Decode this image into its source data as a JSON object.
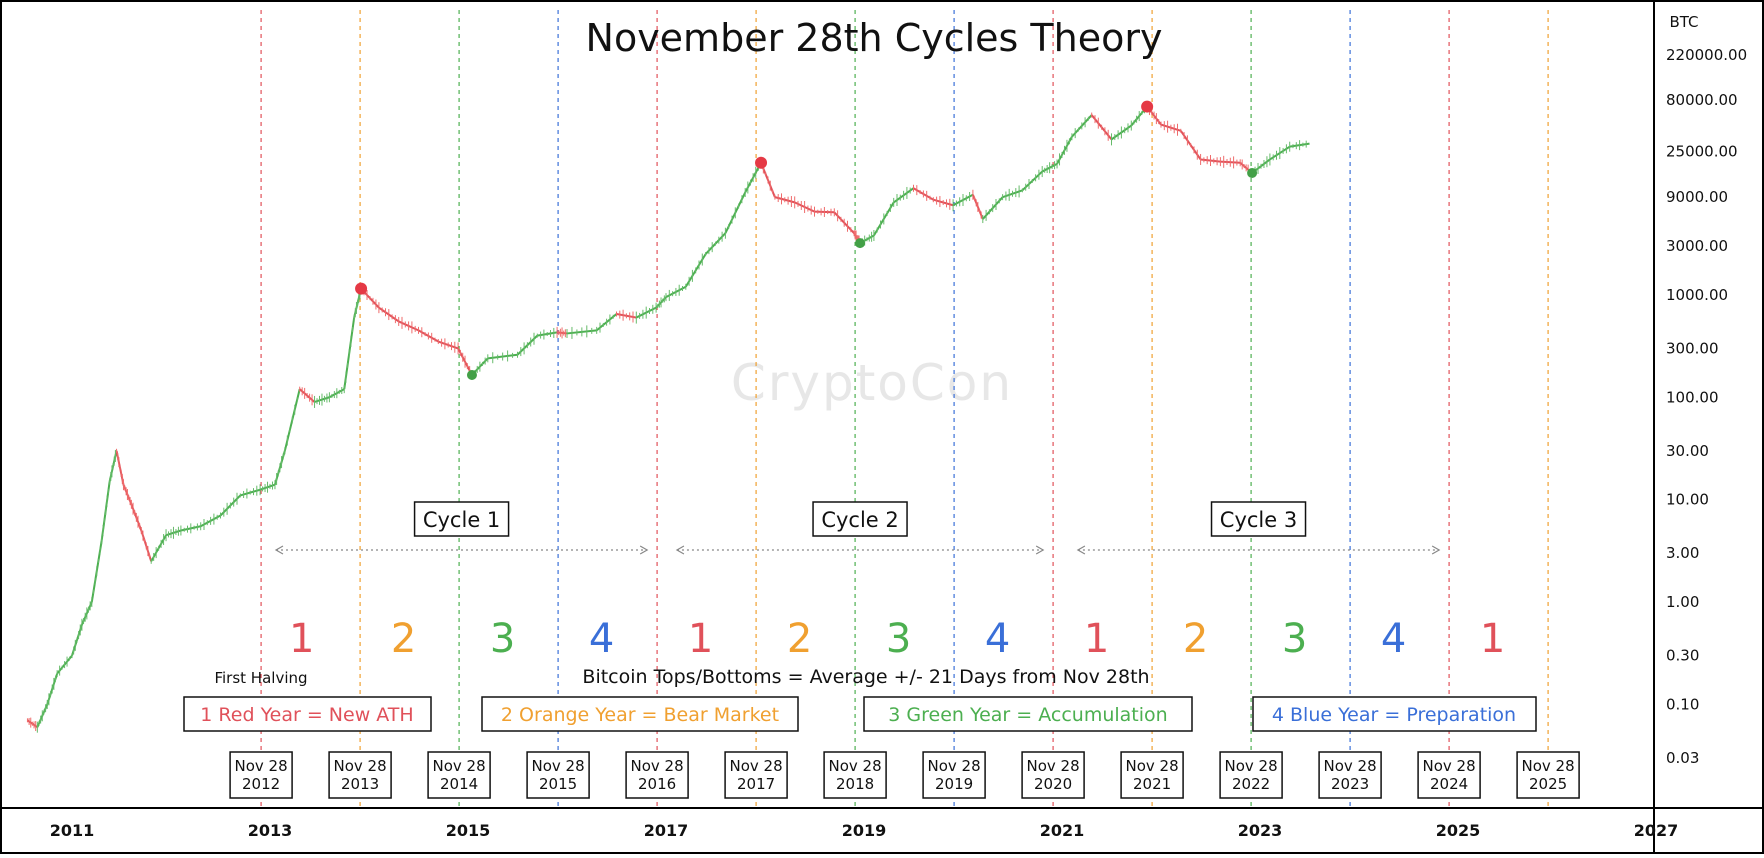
{
  "chart_data": {
    "type": "line",
    "y_scale": "log",
    "title": "November 28th Cycles Theory",
    "ylabel": "BTC",
    "watermark": "CryptoCon",
    "x_ticks": [
      "2011",
      "2013",
      "2015",
      "2017",
      "2019",
      "2021",
      "2023",
      "2025",
      "2027"
    ],
    "y_ticks": [
      "220000.00",
      "80000.00",
      "25000.00",
      "9000.00",
      "3000.00",
      "1000.00",
      "300.00",
      "100.00",
      "30.00",
      "10.00",
      "3.00",
      "1.00",
      "0.30",
      "0.10",
      "0.03"
    ],
    "y_tick_values": [
      220000,
      80000,
      25000,
      9000,
      3000,
      1000,
      300,
      100,
      30,
      10,
      3,
      1,
      0.3,
      0.1,
      0.03
    ],
    "xlim": [
      2010.6,
      2027.2
    ],
    "ylim": [
      0.0087,
      530000
    ],
    "cycle_lines": [
      {
        "x": 2012.91,
        "color": "#e0515a"
      },
      {
        "x": 2013.91,
        "color": "#f0a030"
      },
      {
        "x": 2014.91,
        "color": "#4caf50"
      },
      {
        "x": 2015.91,
        "color": "#3a6fd8"
      },
      {
        "x": 2016.91,
        "color": "#e0515a"
      },
      {
        "x": 2017.91,
        "color": "#f0a030"
      },
      {
        "x": 2018.91,
        "color": "#4caf50"
      },
      {
        "x": 2019.91,
        "color": "#3a6fd8"
      },
      {
        "x": 2020.91,
        "color": "#e0515a"
      },
      {
        "x": 2021.91,
        "color": "#f0a030"
      },
      {
        "x": 2022.91,
        "color": "#4caf50"
      },
      {
        "x": 2023.91,
        "color": "#3a6fd8"
      },
      {
        "x": 2024.91,
        "color": "#e0515a"
      },
      {
        "x": 2025.91,
        "color": "#f0a030"
      }
    ],
    "year_numbers": [
      {
        "x": 2013.32,
        "label": "1",
        "color": "#e0515a"
      },
      {
        "x": 2014.35,
        "label": "2",
        "color": "#f0a030"
      },
      {
        "x": 2015.35,
        "label": "3",
        "color": "#4caf50"
      },
      {
        "x": 2016.35,
        "label": "4",
        "color": "#3a6fd8"
      },
      {
        "x": 2017.35,
        "label": "1",
        "color": "#e0515a"
      },
      {
        "x": 2018.35,
        "label": "2",
        "color": "#f0a030"
      },
      {
        "x": 2019.35,
        "label": "3",
        "color": "#4caf50"
      },
      {
        "x": 2020.35,
        "label": "4",
        "color": "#3a6fd8"
      },
      {
        "x": 2021.35,
        "label": "1",
        "color": "#e0515a"
      },
      {
        "x": 2022.35,
        "label": "2",
        "color": "#f0a030"
      },
      {
        "x": 2023.35,
        "label": "3",
        "color": "#4caf50"
      },
      {
        "x": 2024.35,
        "label": "4",
        "color": "#3a6fd8"
      },
      {
        "x": 2025.35,
        "label": "1",
        "color": "#e0515a"
      }
    ],
    "date_boxes": [
      {
        "x": 2012.91,
        "line1": "Nov 28",
        "line2": "2012"
      },
      {
        "x": 2013.91,
        "line1": "Nov 28",
        "line2": "2013"
      },
      {
        "x": 2014.91,
        "line1": "Nov 28",
        "line2": "2014"
      },
      {
        "x": 2015.91,
        "line1": "Nov 28",
        "line2": "2015"
      },
      {
        "x": 2016.91,
        "line1": "Nov 28",
        "line2": "2016"
      },
      {
        "x": 2017.91,
        "line1": "Nov 28",
        "line2": "2017"
      },
      {
        "x": 2018.91,
        "line1": "Nov 28",
        "line2": "2018"
      },
      {
        "x": 2019.91,
        "line1": "Nov 28",
        "line2": "2019"
      },
      {
        "x": 2020.91,
        "line1": "Nov 28",
        "line2": "2020"
      },
      {
        "x": 2021.91,
        "line1": "Nov 28",
        "line2": "2021"
      },
      {
        "x": 2022.91,
        "line1": "Nov 28",
        "line2": "2022"
      },
      {
        "x": 2023.91,
        "line1": "Nov 28",
        "line2": "2023"
      },
      {
        "x": 2024.91,
        "line1": "Nov 28",
        "line2": "2024"
      },
      {
        "x": 2025.91,
        "line1": "Nov 28",
        "line2": "2025"
      }
    ],
    "cycles": [
      {
        "label": "Cycle 1",
        "x_start": 2013.0,
        "x_end": 2016.85
      },
      {
        "label": "Cycle 2",
        "x_start": 2017.05,
        "x_end": 2020.85
      },
      {
        "label": "Cycle 3",
        "x_start": 2021.1,
        "x_end": 2024.85
      }
    ],
    "legend": [
      {
        "label": "1 Red Year = New ATH",
        "color": "#e0515a"
      },
      {
        "label": "2 Orange Year = Bear Market",
        "color": "#f0a030"
      },
      {
        "label": "3 Green Year = Accumulation",
        "color": "#4caf50"
      },
      {
        "label": "4 Blue Year = Preparation",
        "color": "#3a6fd8"
      }
    ],
    "subtitle": "Bitcoin Tops/Bottoms = Average +/- 21 Days from Nov 28th",
    "halving_label": "First Halving",
    "tops": [
      {
        "x": 2013.92,
        "y": 1150
      },
      {
        "x": 2017.96,
        "y": 19500
      },
      {
        "x": 2021.86,
        "y": 69000
      }
    ],
    "bottoms": [
      {
        "x": 2015.04,
        "y": 165
      },
      {
        "x": 2018.96,
        "y": 3200
      },
      {
        "x": 2022.92,
        "y": 15500
      }
    ],
    "price_series": {
      "x": [
        2010.55,
        2010.65,
        2010.75,
        2010.85,
        2011.0,
        2011.1,
        2011.2,
        2011.3,
        2011.38,
        2011.45,
        2011.52,
        2011.6,
        2011.7,
        2011.8,
        2011.95,
        2012.1,
        2012.3,
        2012.5,
        2012.7,
        2012.9,
        2013.05,
        2013.15,
        2013.3,
        2013.45,
        2013.6,
        2013.75,
        2013.85,
        2013.92,
        2014.1,
        2014.3,
        2014.5,
        2014.7,
        2014.9,
        2015.04,
        2015.2,
        2015.5,
        2015.7,
        2015.9,
        2016.0,
        2016.3,
        2016.5,
        2016.7,
        2016.9,
        2017.0,
        2017.2,
        2017.4,
        2017.6,
        2017.8,
        2017.96,
        2018.1,
        2018.3,
        2018.5,
        2018.7,
        2018.9,
        2018.96,
        2019.1,
        2019.3,
        2019.5,
        2019.7,
        2019.9,
        2020.1,
        2020.2,
        2020.4,
        2020.6,
        2020.8,
        2020.95,
        2021.1,
        2021.3,
        2021.5,
        2021.7,
        2021.86,
        2022.0,
        2022.2,
        2022.4,
        2022.6,
        2022.8,
        2022.92,
        2023.1,
        2023.3,
        2023.5
      ],
      "y": [
        0.07,
        0.06,
        0.1,
        0.2,
        0.3,
        0.6,
        1.0,
        4.0,
        15.0,
        30.0,
        14.0,
        9.0,
        5.0,
        2.5,
        4.5,
        5.0,
        5.5,
        7.0,
        11.0,
        12.5,
        14.0,
        30.0,
        120.0,
        90.0,
        100.0,
        120.0,
        600.0,
        1150.0,
        750.0,
        550.0,
        450.0,
        350.0,
        300.0,
        165.0,
        240.0,
        260.0,
        400.0,
        430.0,
        420.0,
        450.0,
        650.0,
        600.0,
        750.0,
        950.0,
        1200.0,
        2500.0,
        4000.0,
        10000.0,
        19500.0,
        9000.0,
        8000.0,
        6500.0,
        6400.0,
        4000.0,
        3200.0,
        3800.0,
        8000.0,
        11000.0,
        8500.0,
        7500.0,
        9500.0,
        5500.0,
        9000.0,
        10500.0,
        16000.0,
        19000.0,
        35000.0,
        57000.0,
        33000.0,
        45000.0,
        69000.0,
        46000.0,
        40000.0,
        21000.0,
        20000.0,
        19500.0,
        15500.0,
        21000.0,
        28000.0,
        30000.0
      ]
    }
  }
}
